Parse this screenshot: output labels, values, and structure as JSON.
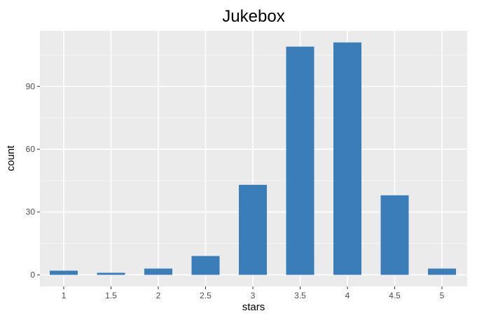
{
  "chart_data": {
    "type": "bar",
    "title": "Jukebox",
    "xlabel": "stars",
    "ylabel": "count",
    "categories": [
      "1",
      "1.5",
      "2",
      "2.5",
      "3",
      "3.5",
      "4",
      "4.5",
      "5"
    ],
    "values": [
      2,
      1,
      3,
      9,
      43,
      109,
      111,
      38,
      3
    ],
    "yticks": [
      0,
      30,
      60,
      90
    ],
    "ylim": [
      -5.55,
      116.55
    ],
    "grid": true,
    "colors": {
      "bar": "#3a7db9",
      "panel": "#ebebeb",
      "grid_major": "#ffffff",
      "grid_minor": "#f5f5f5"
    }
  }
}
